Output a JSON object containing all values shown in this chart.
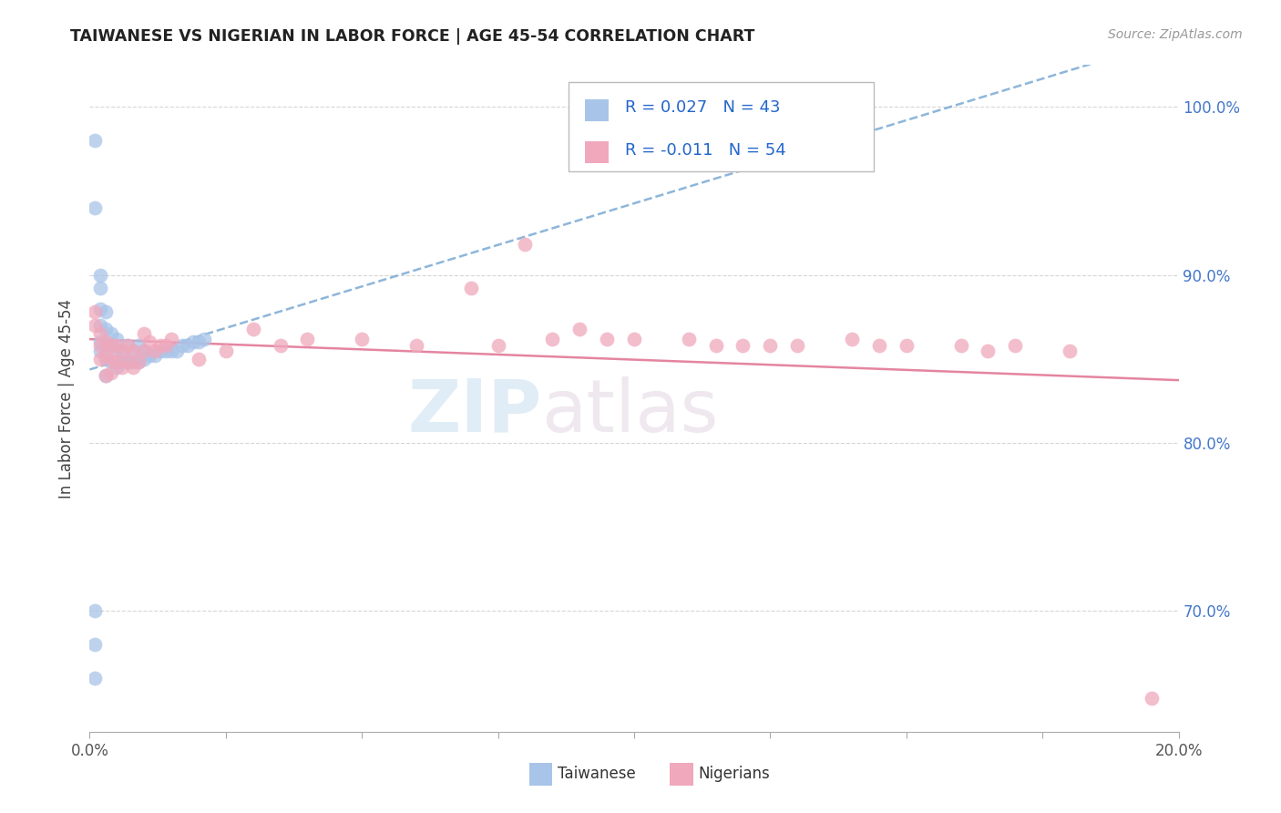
{
  "title": "TAIWANESE VS NIGERIAN IN LABOR FORCE | AGE 45-54 CORRELATION CHART",
  "source_text": "Source: ZipAtlas.com",
  "ylabel": "In Labor Force | Age 45-54",
  "xlim": [
    0.0,
    0.2
  ],
  "ylim": [
    0.628,
    1.025
  ],
  "ytick_vals": [
    0.7,
    0.8,
    0.9,
    1.0
  ],
  "xtick_vals": [
    0.0,
    0.025,
    0.05,
    0.075,
    0.1,
    0.125,
    0.15,
    0.175,
    0.2
  ],
  "legend_r_taiwanese": "0.027",
  "legend_n_taiwanese": "43",
  "legend_r_nigerian": "-0.011",
  "legend_n_nigerian": "54",
  "taiwanese_color": "#a8c4e8",
  "nigerian_color": "#f0a8bc",
  "taiwanese_line_color": "#7aaad4",
  "nigerian_line_color": "#e07090",
  "watermark_zip": "ZIP",
  "watermark_atlas": "atlas",
  "taiwanese_x": [
    0.001,
    0.001,
    0.001,
    0.001,
    0.001,
    0.002,
    0.002,
    0.002,
    0.002,
    0.002,
    0.002,
    0.003,
    0.003,
    0.003,
    0.003,
    0.003,
    0.004,
    0.004,
    0.004,
    0.005,
    0.005,
    0.005,
    0.006,
    0.006,
    0.007,
    0.007,
    0.008,
    0.008,
    0.009,
    0.009,
    0.01,
    0.01,
    0.011,
    0.012,
    0.013,
    0.014,
    0.015,
    0.016,
    0.017,
    0.018,
    0.019,
    0.02,
    0.021
  ],
  "taiwanese_y": [
    0.66,
    0.68,
    0.7,
    0.94,
    0.98,
    0.855,
    0.86,
    0.87,
    0.88,
    0.892,
    0.9,
    0.84,
    0.85,
    0.858,
    0.868,
    0.878,
    0.848,
    0.858,
    0.865,
    0.845,
    0.855,
    0.862,
    0.848,
    0.855,
    0.848,
    0.858,
    0.848,
    0.855,
    0.848,
    0.858,
    0.85,
    0.855,
    0.852,
    0.852,
    0.855,
    0.855,
    0.855,
    0.855,
    0.858,
    0.858,
    0.86,
    0.86,
    0.862
  ],
  "nigerian_x": [
    0.001,
    0.001,
    0.002,
    0.002,
    0.002,
    0.003,
    0.003,
    0.003,
    0.004,
    0.004,
    0.004,
    0.005,
    0.005,
    0.006,
    0.006,
    0.007,
    0.007,
    0.008,
    0.008,
    0.009,
    0.01,
    0.01,
    0.011,
    0.012,
    0.013,
    0.014,
    0.015,
    0.02,
    0.025,
    0.03,
    0.035,
    0.04,
    0.05,
    0.06,
    0.07,
    0.075,
    0.08,
    0.085,
    0.09,
    0.095,
    0.1,
    0.11,
    0.115,
    0.12,
    0.125,
    0.13,
    0.14,
    0.145,
    0.15,
    0.16,
    0.165,
    0.17,
    0.18,
    0.195
  ],
  "nigerian_y": [
    0.87,
    0.878,
    0.85,
    0.858,
    0.865,
    0.84,
    0.852,
    0.86,
    0.842,
    0.85,
    0.858,
    0.848,
    0.858,
    0.845,
    0.855,
    0.848,
    0.858,
    0.845,
    0.855,
    0.848,
    0.855,
    0.865,
    0.86,
    0.855,
    0.858,
    0.858,
    0.862,
    0.85,
    0.855,
    0.868,
    0.858,
    0.862,
    0.862,
    0.858,
    0.892,
    0.858,
    0.918,
    0.862,
    0.868,
    0.862,
    0.862,
    0.862,
    0.858,
    0.858,
    0.858,
    0.858,
    0.862,
    0.858,
    0.858,
    0.858,
    0.855,
    0.858,
    0.855,
    0.648
  ]
}
